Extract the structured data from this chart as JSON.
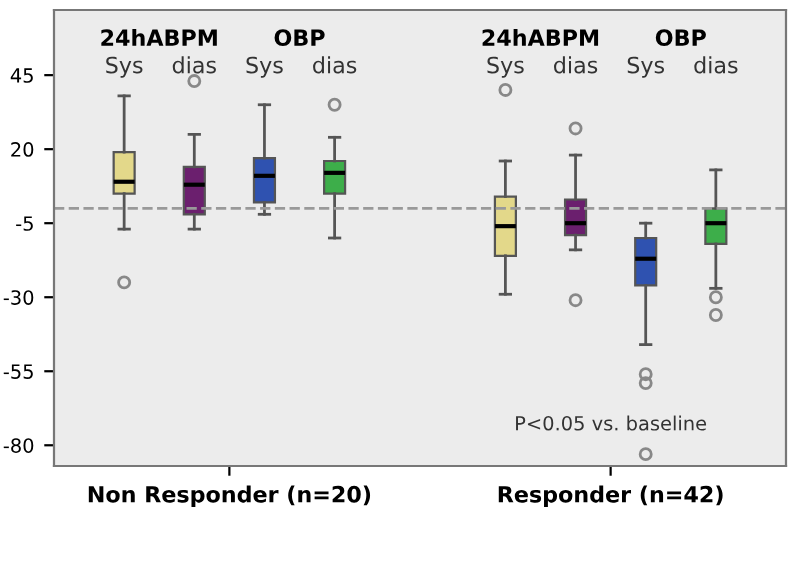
{
  "chart_data": {
    "type": "box",
    "categories": [
      "Non Responder (n=20)",
      "Responder (n=42)"
    ],
    "ylim": [
      -87,
      67
    ],
    "yticks": [
      45,
      20,
      -5,
      -30,
      -55,
      -80
    ],
    "grid": false,
    "series": [
      {
        "name": "Sys",
        "color": "#e3d88a",
        "boxes": [
          {
            "low": -7,
            "q1": 5,
            "median": 9,
            "q3": 19,
            "high": 38,
            "outliers": [
              -25
            ]
          },
          {
            "low": -29,
            "q1": -16,
            "median": -6,
            "q3": 4,
            "high": 16,
            "outliers": [
              40
            ]
          }
        ]
      },
      {
        "name": "dias",
        "color": "#6b1f6e",
        "boxes": [
          {
            "low": -7,
            "q1": -2,
            "median": 8,
            "q3": 14,
            "high": 25,
            "outliers": [
              43
            ]
          },
          {
            "low": -14,
            "q1": -9,
            "median": -5,
            "q3": 3,
            "high": 18,
            "outliers": [
              27,
              -31
            ]
          }
        ]
      },
      {
        "name": "Sys",
        "color": "#2f52b0",
        "boxes": [
          {
            "low": -2,
            "q1": 2,
            "median": 11,
            "q3": 17,
            "high": 35
          },
          {
            "low": -46,
            "q1": -26,
            "median": -17,
            "q3": -10,
            "high": -5,
            "outliers": [
              -56,
              -59,
              -83
            ]
          }
        ]
      },
      {
        "name": "dias",
        "color": "#3dae4a",
        "boxes": [
          {
            "low": -10,
            "q1": 5,
            "median": 12,
            "q3": 16,
            "high": 24,
            "outliers": [
              35
            ]
          },
          {
            "low": -27,
            "q1": -12,
            "median": -5,
            "q3": 0,
            "high": 13,
            "outliers": [
              -30,
              -36
            ]
          }
        ]
      }
    ],
    "ref_lines": [
      {
        "axis": "y",
        "value": 0,
        "color": "#999999",
        "line_style": "dashed"
      }
    ],
    "annotations": [
      "24hABPM",
      "OBP",
      "P<0.05 vs. baseline"
    ]
  }
}
